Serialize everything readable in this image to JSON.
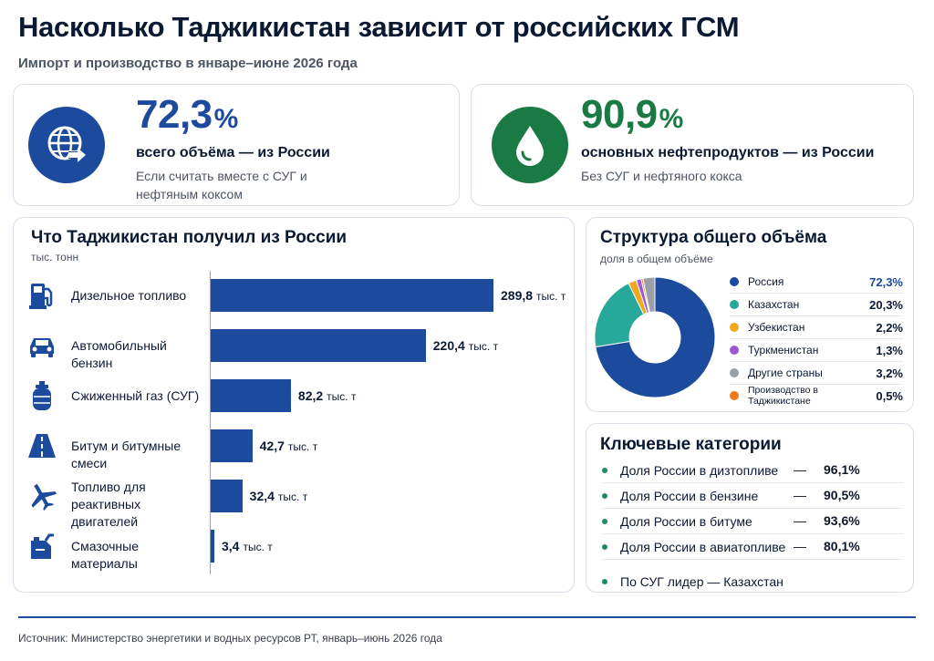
{
  "header": {
    "title": "Насколько Таджикистан зависит от российских ГСМ",
    "subtitle": "Импорт и производство в январе–июне 2026 года"
  },
  "kpis": [
    {
      "icon": "globe-arrow-icon",
      "color": "#1c4a9c",
      "value": "72,3",
      "unit": "%",
      "label": "всего объёма — из России",
      "note": "Если считать вместе с СУГ и нефтяным коксом"
    },
    {
      "icon": "drop-icon",
      "color": "#1a7a44",
      "value": "90,9",
      "unit": "%",
      "label": "основных нефтепродуктов — из России",
      "note": "Без СУГ и нефтяного кокса"
    }
  ],
  "bars_section": {
    "title": "Что Таджикистан получил из России",
    "unit": "тыс. тонн"
  },
  "donut_section": {
    "title": "Структура общего объёма",
    "unit": "доля в общем объёме"
  },
  "key_section": {
    "title": "Ключевые категории",
    "items": [
      {
        "label": "Доля России в дизтопливе",
        "dash": "—",
        "value": "96,1%"
      },
      {
        "label": "Доля России в бензине",
        "dash": "—",
        "value": "90,5%"
      },
      {
        "label": "Доля России в битуме",
        "dash": "—",
        "value": "93,6%"
      },
      {
        "label": "Доля России в авиатопливе",
        "dash": "—",
        "value": "80,1%"
      }
    ],
    "note": "По СУГ лидер — Казахстан"
  },
  "footer": {
    "source": "Источник: Министерство энергетики и водных ресурсов РТ, январь–июнь 2026 года"
  },
  "colors": {
    "primary": "#1c4a9c",
    "green": "#1a7a44",
    "teal": "#1a8a6a"
  },
  "chart_data": [
    {
      "type": "bar",
      "orientation": "horizontal",
      "title": "Что Таджикистан получил из России",
      "ylabel": "тыс. тонн",
      "categories": [
        "Дизельное топливо",
        "Автомобильный бензин",
        "Сжиженный газ (СУГ)",
        "Битум и битумные смеси",
        "Топливо для реактивных двигателей",
        "Смазочные материалы"
      ],
      "icons": [
        "fuel-pump-icon",
        "car-icon",
        "gas-cylinder-icon",
        "road-icon",
        "airplane-icon",
        "oil-canister-icon"
      ],
      "values": [
        289.8,
        220.4,
        82.2,
        42.7,
        32.4,
        3.4
      ],
      "value_labels": [
        "289,8",
        "220,4",
        "82,2",
        "42,7",
        "32,4",
        "3,4"
      ],
      "value_unit": "тыс. т",
      "color": "#1c4a9c"
    },
    {
      "type": "pie",
      "title": "Структура общего объёма",
      "subtitle": "доля в общем объёме",
      "categories": [
        "Россия",
        "Казахстан",
        "Узбекистан",
        "Туркменистан",
        "Другие страны",
        "Производство в Таджикистане"
      ],
      "values": [
        72.3,
        20.3,
        2.2,
        1.3,
        3.2,
        0.5
      ],
      "value_labels": [
        "72,3%",
        "20,3%",
        "2,2%",
        "1,3%",
        "3,2%",
        "0,5%"
      ],
      "colors": [
        "#1c4a9c",
        "#27a89a",
        "#f0a81c",
        "#9b59d6",
        "#9aa0a8",
        "#f07a1c"
      ],
      "legend": "right"
    }
  ]
}
